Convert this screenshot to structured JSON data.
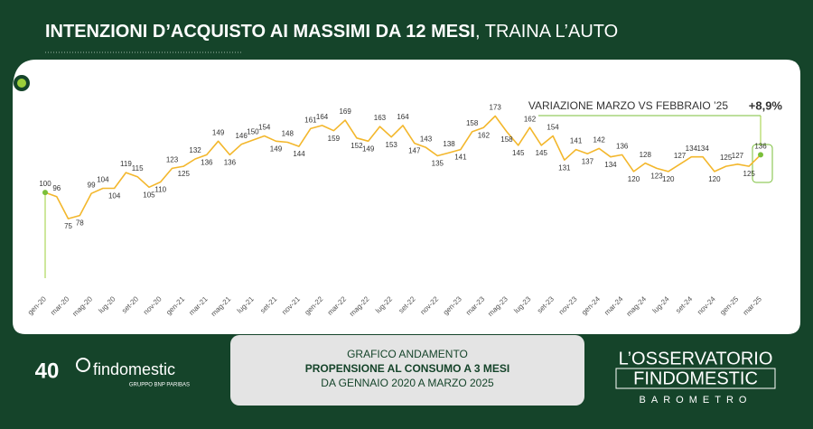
{
  "chart_data": {
    "type": "line",
    "title_bold": "INTENZIONI D’ACQUISTO AI MASSIMI DA 12 MESI",
    "title_rest": ", TRAINA L’AUTO",
    "annotation": "VARIAZIONE MARZO VS FEBBRAIO ’25",
    "annotation_value": "+8,9%",
    "categories": [
      "gen-20",
      null,
      "mar-20",
      null,
      "mag-20",
      null,
      "lug-20",
      null,
      "set-20",
      null,
      "nov-20",
      null,
      "gen-21",
      null,
      "mar-21",
      null,
      "mag-21",
      null,
      "lug-21",
      null,
      "set-21",
      null,
      "nov-21",
      null,
      "gen-22",
      null,
      "mar-22",
      null,
      "mag-22",
      null,
      "lug-22",
      null,
      "set-22",
      null,
      "nov-22",
      null,
      "gen-23",
      null,
      "mar-23",
      null,
      "mag-23",
      null,
      "lug-23",
      null,
      "set-23",
      null,
      "nov-23",
      null,
      "gen-24",
      null,
      "mar-24",
      null,
      "mag-24",
      null,
      "lug-24",
      null,
      "set-24",
      null,
      "nov-24",
      null,
      "gen-25",
      null,
      "mar-25"
    ],
    "values": [
      100,
      96,
      75,
      78,
      99,
      104,
      104,
      119,
      115,
      105,
      110,
      123,
      125,
      132,
      136,
      149,
      136,
      146,
      150,
      154,
      149,
      148,
      144,
      161,
      164,
      159,
      169,
      152,
      149,
      163,
      153,
      164,
      147,
      143,
      135,
      138,
      141,
      158,
      162,
      173,
      158,
      145,
      162,
      145,
      154,
      131,
      141,
      137,
      142,
      134,
      136,
      120,
      128,
      123,
      120,
      127,
      134,
      134,
      120,
      125,
      127,
      125,
      136
    ],
    "color": "#f3b72c",
    "ylim": [
      25,
      195
    ]
  },
  "footer": {
    "caption": [
      "GRAFICO ANDAMENTO",
      "PROPENSIONE AL CONSUMO A 3 MESI",
      "DA GENNAIO 2020 A MARZO 2025"
    ],
    "logo_number": "40",
    "logo_name": "findomestic",
    "logo_group": "GRUPPO BNP PARIBAS",
    "brand": [
      "L’OSSERVATORIO",
      "FINDOMESTIC",
      "BAROMETRO"
    ]
  }
}
